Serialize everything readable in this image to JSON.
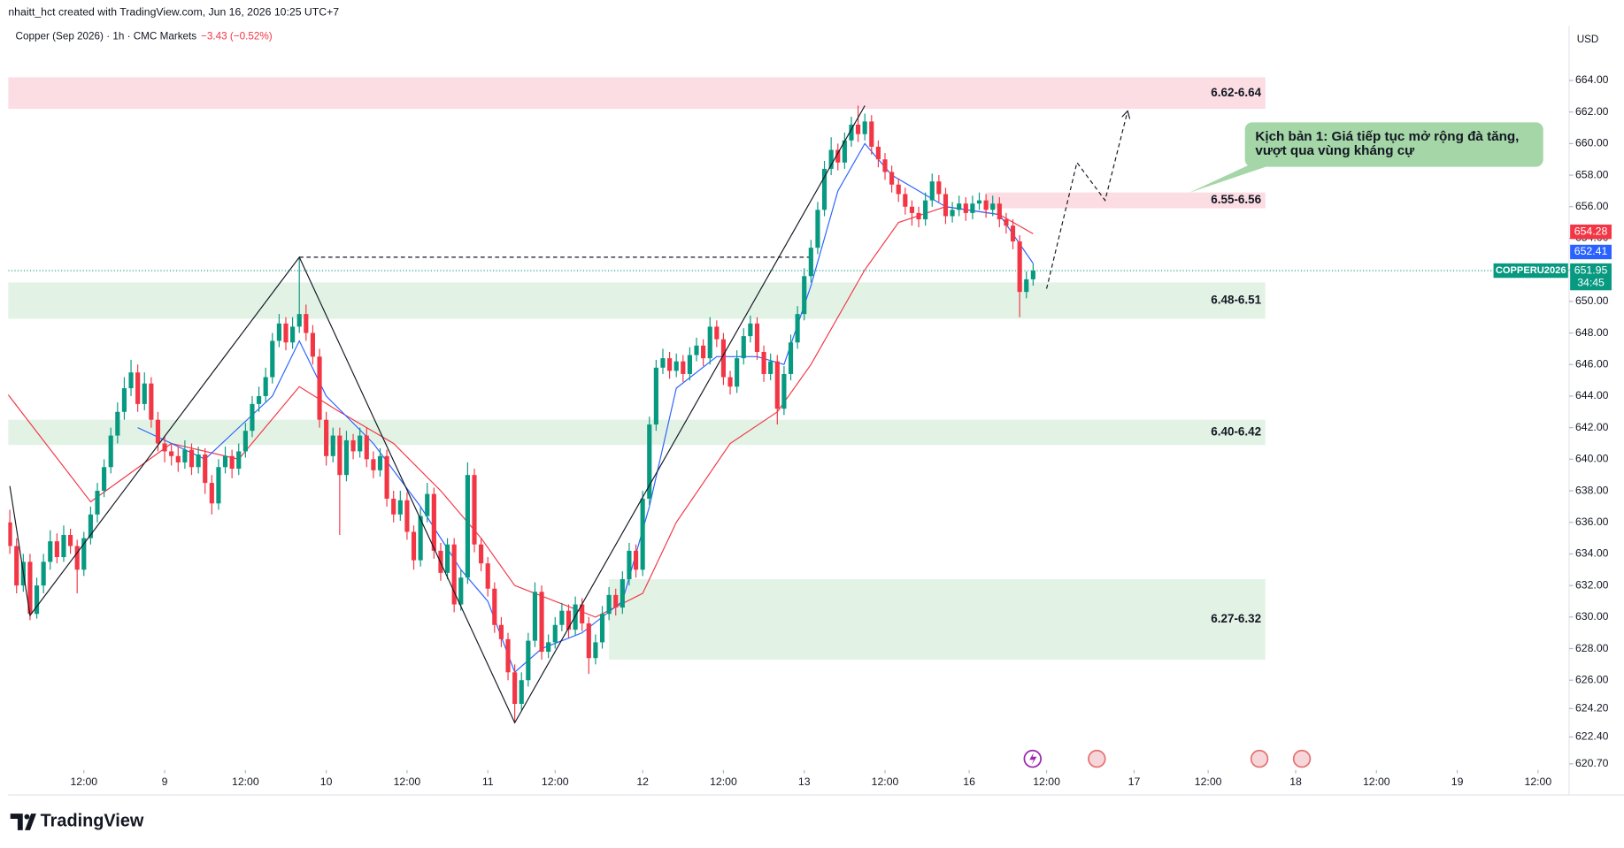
{
  "header": {
    "author_line": "nhaitt_hct created with TradingView.com, Jun 16, 2026 10:25 UTC+7",
    "symbol": "Copper (Sep 2026) · 1h · CMC Markets",
    "change": "−3.43 (−0.52%)",
    "logo": "TradingView"
  },
  "chart_data": {
    "type": "candlestick",
    "currency": "USD",
    "up_color": "#089981",
    "down_color": "#f23645",
    "xlim": [
      0,
      232
    ],
    "ylim": [
      620.3,
      666.0
    ],
    "xticks": [
      {
        "value": 12,
        "label": "12:00"
      },
      {
        "value": 24,
        "label": "9"
      },
      {
        "value": 36,
        "label": "12:00"
      },
      {
        "value": 48,
        "label": "10"
      },
      {
        "value": 60,
        "label": "12:00"
      },
      {
        "value": 72,
        "label": "11"
      },
      {
        "value": 82,
        "label": "12:00"
      },
      {
        "value": 95,
        "label": "12"
      },
      {
        "value": 107,
        "label": "12:00"
      },
      {
        "value": 119,
        "label": "13"
      },
      {
        "value": 131,
        "label": "12:00"
      },
      {
        "value": 143.5,
        "label": "16"
      },
      {
        "value": 155,
        "label": "12:00"
      },
      {
        "value": 168,
        "label": "17"
      },
      {
        "value": 179,
        "label": "12:00"
      },
      {
        "value": 192,
        "label": "18"
      },
      {
        "value": 204,
        "label": "12:00"
      },
      {
        "value": 216,
        "label": "19"
      },
      {
        "value": 228,
        "label": "12:00"
      }
    ],
    "yticks": [
      {
        "value": 664,
        "label": "664.00"
      },
      {
        "value": 662,
        "label": "662.00"
      },
      {
        "value": 660,
        "label": "660.00"
      },
      {
        "value": 658,
        "label": "658.00"
      },
      {
        "value": 656,
        "label": "656.00"
      },
      {
        "value": 654,
        "label": "654.00"
      },
      {
        "value": 652,
        "label": "652.00"
      },
      {
        "value": 650,
        "label": "650.00"
      },
      {
        "value": 648,
        "label": "648.00"
      },
      {
        "value": 646,
        "label": "646.00"
      },
      {
        "value": 644,
        "label": "644.00"
      },
      {
        "value": 642,
        "label": "642.00"
      },
      {
        "value": 640,
        "label": "640.00"
      },
      {
        "value": 638,
        "label": "638.00"
      },
      {
        "value": 636,
        "label": "636.00"
      },
      {
        "value": 634,
        "label": "634.00"
      },
      {
        "value": 632,
        "label": "632.00"
      },
      {
        "value": 630,
        "label": "630.00"
      },
      {
        "value": 628,
        "label": "628.00"
      },
      {
        "value": 626,
        "label": "626.00"
      },
      {
        "value": 624.2,
        "label": "624.20"
      },
      {
        "value": 622.4,
        "label": "622.40"
      },
      {
        "value": 620.7,
        "label": "620.70"
      }
    ],
    "candles": [
      [
        1,
        636,
        636.8,
        634,
        634.5
      ],
      [
        2,
        634.5,
        635,
        631.5,
        632
      ],
      [
        3,
        632,
        634,
        631.6,
        633.5
      ],
      [
        4,
        633.5,
        634,
        629.8,
        630.2
      ],
      [
        5,
        630.2,
        632.5,
        629.9,
        632
      ],
      [
        6,
        632,
        634,
        631.5,
        633.5
      ],
      [
        7,
        633.5,
        635.5,
        633,
        634.8
      ],
      [
        8,
        634.8,
        635.3,
        633.4,
        633.8
      ],
      [
        9,
        633.8,
        635.8,
        633.5,
        635.2
      ],
      [
        10,
        635.2,
        635.6,
        634,
        634.5
      ],
      [
        11,
        634.5,
        634.9,
        631.5,
        633
      ],
      [
        12,
        633,
        635.4,
        632.6,
        635
      ],
      [
        13,
        635,
        637,
        634.6,
        636.5
      ],
      [
        14,
        636.5,
        638.5,
        636,
        638
      ],
      [
        15,
        638,
        640,
        637.6,
        639.5
      ],
      [
        16,
        639.5,
        642,
        639.1,
        641.5
      ],
      [
        17,
        641.5,
        643.6,
        641,
        643
      ],
      [
        18,
        643,
        645.2,
        642.5,
        644.5
      ],
      [
        19,
        644.5,
        646.3,
        644,
        645.5
      ],
      [
        20,
        645.5,
        646,
        643,
        643.5
      ],
      [
        21,
        643.5,
        645.5,
        643.1,
        644.8
      ],
      [
        22,
        644.8,
        645.2,
        642,
        642.5
      ],
      [
        23,
        642.5,
        643,
        640.5,
        641
      ],
      [
        24,
        641,
        641.5,
        639.8,
        640.5
      ],
      [
        25,
        640.5,
        641,
        639.6,
        640.2
      ],
      [
        26,
        640.2,
        640.8,
        639.2,
        639.8
      ],
      [
        27,
        639.8,
        641.2,
        639.4,
        640.6
      ],
      [
        28,
        640.6,
        641,
        639,
        639.5
      ],
      [
        29,
        639.5,
        640.8,
        639.1,
        640.3
      ],
      [
        30,
        640.3,
        640.7,
        637.8,
        638.5
      ],
      [
        31,
        638.5,
        639,
        636.5,
        637.2
      ],
      [
        32,
        637.2,
        640,
        636.8,
        639.5
      ],
      [
        33,
        639.5,
        640.8,
        639.1,
        640.2
      ],
      [
        34,
        640.2,
        640.6,
        638.8,
        639.4
      ],
      [
        35,
        639.4,
        641,
        639,
        640.5
      ],
      [
        36,
        640.5,
        642.3,
        640.1,
        641.8
      ],
      [
        37,
        641.8,
        644,
        641.4,
        643.5
      ],
      [
        38,
        643.5,
        644.6,
        643,
        644
      ],
      [
        39,
        644,
        645.8,
        643.6,
        645.2
      ],
      [
        40,
        645.2,
        648,
        644.8,
        647.5
      ],
      [
        41,
        647.5,
        649.2,
        647.1,
        648.6
      ],
      [
        42,
        648.6,
        649,
        646.9,
        647.4
      ],
      [
        43,
        647.4,
        649,
        647,
        648.4
      ],
      [
        44,
        648.4,
        652.8,
        648,
        649.2
      ],
      [
        45,
        649.2,
        649.8,
        647.5,
        648
      ],
      [
        46,
        648,
        648.5,
        646,
        646.5
      ],
      [
        47,
        646.5,
        647,
        642,
        642.5
      ],
      [
        48,
        642.5,
        643,
        639.6,
        640.2
      ],
      [
        49,
        640.2,
        642,
        639.8,
        641.5
      ],
      [
        50,
        641.5,
        642,
        635.2,
        639
      ],
      [
        51,
        639,
        641.8,
        638.6,
        641.2
      ],
      [
        52,
        641.2,
        641.6,
        640,
        640.5
      ],
      [
        53,
        640.5,
        642,
        640.1,
        641.5
      ],
      [
        54,
        641.5,
        642,
        639.5,
        640
      ],
      [
        55,
        640,
        640.5,
        638.8,
        639.3
      ],
      [
        56,
        639.3,
        640.7,
        638.9,
        640.2
      ],
      [
        57,
        640.2,
        640.6,
        637,
        637.5
      ],
      [
        58,
        637.5,
        638,
        636,
        636.5
      ],
      [
        59,
        636.5,
        638,
        636.1,
        637.4
      ],
      [
        60,
        637.4,
        637.9,
        634.9,
        635.4
      ],
      [
        61,
        635.4,
        635.8,
        633,
        633.6
      ],
      [
        62,
        633.6,
        637,
        633.2,
        636.4
      ],
      [
        63,
        636.4,
        638.5,
        636,
        637.8
      ],
      [
        64,
        637.8,
        638.2,
        633.7,
        634.2
      ],
      [
        65,
        634.2,
        634.7,
        632.3,
        632.8
      ],
      [
        66,
        632.8,
        635,
        632.4,
        634.6
      ],
      [
        67,
        634.6,
        635,
        630.3,
        630.8
      ],
      [
        68,
        630.8,
        633,
        630.4,
        632.5
      ],
      [
        69,
        632.5,
        639.8,
        632.1,
        639
      ],
      [
        70,
        639,
        639.4,
        634.1,
        634.6
      ],
      [
        71,
        634.6,
        635,
        632.9,
        633.4
      ],
      [
        72,
        633.4,
        633.8,
        631.3,
        631.8
      ],
      [
        73,
        631.8,
        632.2,
        629,
        629.5
      ],
      [
        74,
        629.5,
        630,
        628.1,
        628.6
      ],
      [
        75,
        628.6,
        629,
        626,
        626.5
      ],
      [
        76,
        626.5,
        627,
        623.3,
        624.5
      ],
      [
        77,
        624.5,
        626.5,
        624.1,
        626
      ],
      [
        78,
        626,
        629,
        625.6,
        628.5
      ],
      [
        79,
        628.5,
        632.2,
        628.1,
        631.6
      ],
      [
        80,
        631.6,
        632,
        627.3,
        627.8
      ],
      [
        81,
        627.8,
        628.9,
        627.4,
        628.4
      ],
      [
        82,
        628.4,
        630,
        628,
        629.5
      ],
      [
        83,
        629.5,
        630.9,
        629.1,
        630.4
      ],
      [
        84,
        630.4,
        630.8,
        628.7,
        629.2
      ],
      [
        85,
        629.2,
        631.3,
        628.8,
        630.8
      ],
      [
        86,
        630.8,
        631.2,
        629.1,
        629.6
      ],
      [
        87,
        629.6,
        630,
        626.4,
        627.4
      ],
      [
        88,
        627.4,
        628.9,
        627,
        628.4
      ],
      [
        89,
        628.4,
        630.7,
        628,
        630.2
      ],
      [
        90,
        630.2,
        631.9,
        629.8,
        631.4
      ],
      [
        91,
        631.4,
        631.8,
        630.1,
        630.6
      ],
      [
        92,
        630.6,
        632.9,
        630.2,
        632.4
      ],
      [
        93,
        632.4,
        634.7,
        632,
        634.2
      ],
      [
        94,
        634.2,
        634.6,
        632.5,
        633
      ],
      [
        95,
        633,
        638,
        632.6,
        637.5
      ],
      [
        96,
        637.5,
        642.7,
        637.1,
        642.2
      ],
      [
        97,
        642.2,
        646.3,
        641.8,
        645.8
      ],
      [
        98,
        645.8,
        647,
        645.4,
        646.4
      ],
      [
        99,
        646.4,
        646.8,
        645.1,
        645.6
      ],
      [
        100,
        645.6,
        646.7,
        645.2,
        646.2
      ],
      [
        101,
        646.2,
        646.6,
        644.9,
        645.4
      ],
      [
        102,
        645.4,
        647.1,
        645,
        646.6
      ],
      [
        103,
        646.6,
        647.7,
        646.2,
        647.2
      ],
      [
        104,
        647.2,
        647.6,
        645.9,
        646.4
      ],
      [
        105,
        646.4,
        649,
        646,
        648.4
      ],
      [
        106,
        648.4,
        648.8,
        647.1,
        647.6
      ],
      [
        107,
        647.6,
        648,
        644.7,
        645.2
      ],
      [
        108,
        645.2,
        645.6,
        644.1,
        644.6
      ],
      [
        109,
        644.6,
        646.9,
        644.2,
        646.4
      ],
      [
        110,
        646.4,
        648.3,
        646,
        647.8
      ],
      [
        111,
        647.8,
        649.1,
        647.4,
        648.6
      ],
      [
        112,
        648.6,
        649,
        646.3,
        646.8
      ],
      [
        113,
        646.8,
        647.2,
        644.9,
        645.4
      ],
      [
        114,
        645.4,
        646.7,
        645,
        646.2
      ],
      [
        115,
        646.2,
        646.6,
        642.2,
        643.2
      ],
      [
        116,
        643.2,
        645.9,
        642.8,
        645.4
      ],
      [
        117,
        645.4,
        647.9,
        645,
        647.4
      ],
      [
        118,
        647.4,
        649.7,
        647,
        649.2
      ],
      [
        119,
        649.2,
        652.1,
        648.8,
        651.6
      ],
      [
        120,
        651.6,
        653.9,
        651.2,
        653.4
      ],
      [
        121,
        653.4,
        656.3,
        653,
        655.8
      ],
      [
        122,
        655.8,
        658.9,
        655.4,
        658.4
      ],
      [
        123,
        658.4,
        660.4,
        658,
        659.6
      ],
      [
        124,
        659.6,
        660,
        658.3,
        658.8
      ],
      [
        125,
        658.8,
        660.7,
        658.4,
        660.2
      ],
      [
        126,
        660.2,
        661.7,
        659.8,
        661.2
      ],
      [
        127,
        661.2,
        662.4,
        660.1,
        660.6
      ],
      [
        128,
        660.6,
        661.9,
        660.2,
        661.4
      ],
      [
        129,
        661.4,
        661.8,
        659.3,
        659.8
      ],
      [
        130,
        659.8,
        660.2,
        658.5,
        659
      ],
      [
        131,
        659,
        659.4,
        657.7,
        658.2
      ],
      [
        132,
        658.2,
        658.6,
        656.9,
        657.4
      ],
      [
        133,
        657.4,
        657.8,
        656.3,
        656.8
      ],
      [
        134,
        656.8,
        657.2,
        655.5,
        656
      ],
      [
        135,
        656,
        656.4,
        654.8,
        655.6
      ],
      [
        136,
        655.6,
        656,
        654.7,
        655.2
      ],
      [
        137,
        655.2,
        656.9,
        654.8,
        656.4
      ],
      [
        138,
        656.4,
        658.1,
        656,
        657.6
      ],
      [
        139,
        657.6,
        658,
        656.3,
        656.8
      ],
      [
        140,
        656.8,
        657.2,
        654.9,
        655.4
      ],
      [
        141,
        655.4,
        656.3,
        655,
        655.8
      ],
      [
        142,
        655.8,
        656.7,
        655.4,
        656.2
      ],
      [
        143,
        656.2,
        656.6,
        655.1,
        655.6
      ],
      [
        144,
        655.6,
        656.7,
        655.2,
        656.2
      ],
      [
        145,
        656.2,
        656.9,
        655.8,
        656.4
      ],
      [
        146,
        656.4,
        656.8,
        655.3,
        655.8
      ],
      [
        147,
        655.8,
        656.7,
        655.4,
        656.2
      ],
      [
        148,
        656.2,
        656.6,
        654.7,
        655.2
      ],
      [
        149,
        655.2,
        655.6,
        654.3,
        654.8
      ],
      [
        150,
        654.8,
        655.2,
        653.3,
        653.8
      ],
      [
        151,
        653.8,
        654.2,
        649,
        650.6
      ],
      [
        152,
        650.6,
        651.9,
        650.2,
        651.4
      ],
      [
        153,
        651.4,
        652.4,
        651,
        651.95
      ]
    ],
    "moving_averages": [
      {
        "color": "#f23645",
        "x": [
          0,
          13,
          25,
          35,
          44,
          50,
          58,
          65,
          71,
          76,
          85,
          88,
          95,
          100,
          108,
          115,
          120,
          128,
          133,
          140,
          148,
          153
        ],
        "values": [
          644.5,
          637.3,
          641,
          640,
          644.6,
          643,
          641,
          638,
          635,
          632,
          630.5,
          630,
          631.5,
          636,
          641,
          643,
          646,
          652,
          655,
          656,
          655.5,
          654.28
        ]
      },
      {
        "color": "#2962ff",
        "x": [
          20,
          30,
          40,
          44,
          48,
          55,
          62,
          68,
          72,
          76,
          80,
          86,
          92,
          96,
          100,
          106,
          112,
          116,
          120,
          124,
          128,
          132,
          140,
          148,
          153
        ],
        "values": [
          642,
          640,
          644,
          647.5,
          644,
          641,
          637,
          633,
          631,
          626.5,
          628,
          629,
          631,
          637,
          644.5,
          646.5,
          646.5,
          646,
          651,
          657,
          660,
          658,
          656,
          655.5,
          652.41
        ]
      }
    ],
    "zigzag": {
      "x": [
        1,
        4,
        44,
        76,
        128
      ],
      "values": [
        638.3,
        630.1,
        652.8,
        623.3,
        662.4
      ]
    },
    "level_line": {
      "x": [
        44,
        120
      ],
      "value": 652.8
    },
    "projection": {
      "x": [
        155,
        159.5,
        163.7,
        167
      ],
      "values": [
        650.8,
        658.8,
        656.4,
        662
      ]
    },
    "zones": [
      {
        "label": "6.62-6.64",
        "low": 662.2,
        "high": 664.2,
        "x": [
          0,
          187.5
        ],
        "color": "#fcdde4"
      },
      {
        "label": "6.55-6.56",
        "low": 655.9,
        "high": 656.9,
        "x": [
          146,
          187.5
        ],
        "color": "#fcdde4"
      },
      {
        "label": "6.48-6.51",
        "low": 648.9,
        "high": 651.2,
        "x": [
          0,
          187.5
        ],
        "color": "#e2f3e6"
      },
      {
        "label": "6.40-6.42",
        "low": 640.9,
        "high": 642.5,
        "x": [
          0,
          187.5
        ],
        "color": "#e2f3e6"
      },
      {
        "label": "6.27-6.32",
        "low": 627.3,
        "high": 632.4,
        "x": [
          90,
          187.5
        ],
        "color": "#e2f3e6"
      }
    ],
    "annotation": {
      "lines": [
        "Kịch bản 1: Giá tiếp tục mở rộng đà tăng,",
        "vượt qua vùng kháng cự"
      ]
    },
    "price_label": {
      "symbol": "COPPERU2026",
      "countdown": "34:45"
    }
  }
}
